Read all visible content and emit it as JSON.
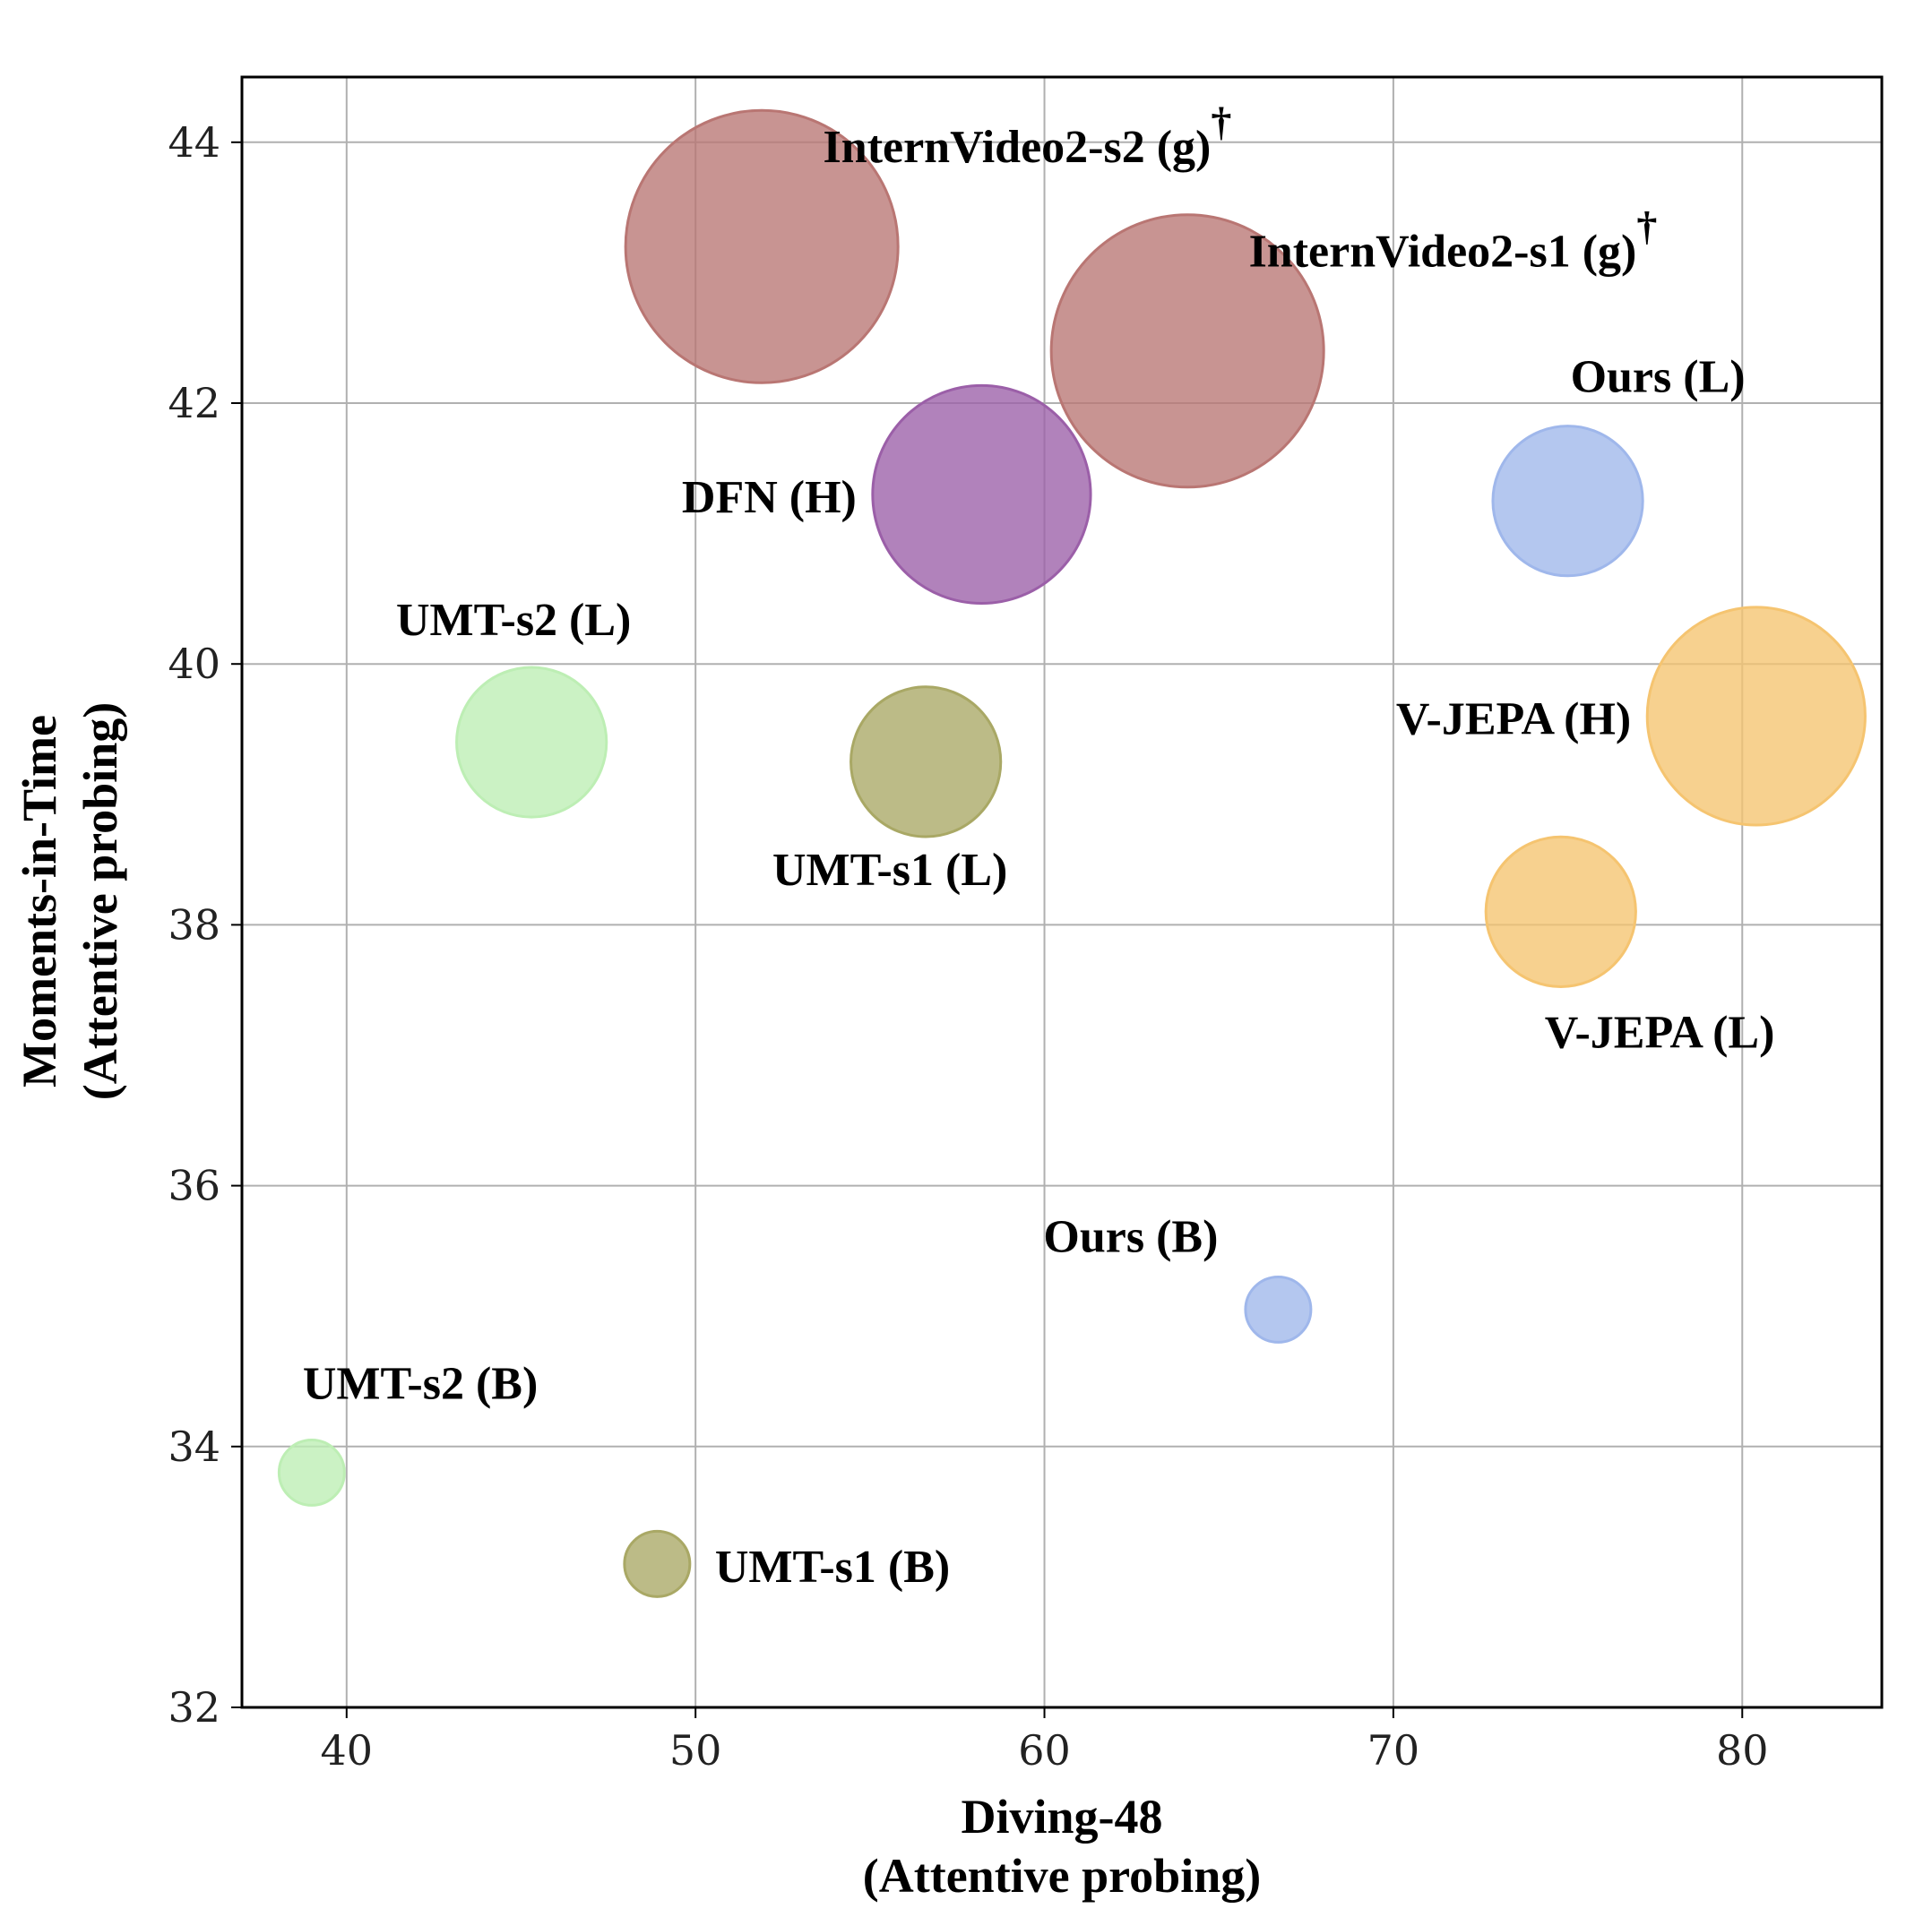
{
  "chart_data": {
    "type": "scatter",
    "title": "",
    "xlabel": [
      "Diving-48",
      "(Attentive probing)"
    ],
    "ylabel": [
      "Moments-in-Time",
      "(Attentive probing)"
    ],
    "xlim": [
      37,
      84
    ],
    "ylim": [
      32,
      44.5
    ],
    "xticks": [
      40,
      50,
      60,
      70,
      80
    ],
    "yticks": [
      32,
      34,
      36,
      38,
      40,
      42,
      44
    ],
    "grid": true,
    "points": [
      {
        "name": "InternVideo2-s2 (g)",
        "marker": "†",
        "x": 51.9,
        "y": 43.2,
        "size": 10.0,
        "color": "#b97673",
        "label_anchor": "right-upper"
      },
      {
        "name": "InternVideo2-s1 (g)",
        "marker": "†",
        "x": 64.1,
        "y": 42.4,
        "size": 10.0,
        "color": "#b97673",
        "label_anchor": "right-upper"
      },
      {
        "name": "DFN (H)",
        "marker": "",
        "x": 58.2,
        "y": 41.3,
        "size": 8.0,
        "color": "#9b5fa8",
        "label_anchor": "left"
      },
      {
        "name": "Ours (L)",
        "marker": "",
        "x": 75.0,
        "y": 41.25,
        "size": 5.5,
        "color": "#9fb7eb",
        "label_anchor": "above-right"
      },
      {
        "name": "V-JEPA (H)",
        "marker": "",
        "x": 80.4,
        "y": 39.6,
        "size": 8.0,
        "color": "#f5c470",
        "label_anchor": "left"
      },
      {
        "name": "UMT-s2 (L)",
        "marker": "",
        "x": 45.3,
        "y": 39.4,
        "size": 5.5,
        "color": "#bdeeb4",
        "label_anchor": "above"
      },
      {
        "name": "UMT-s1 (L)",
        "marker": "",
        "x": 56.6,
        "y": 39.25,
        "size": 5.5,
        "color": "#a9a865",
        "label_anchor": "below"
      },
      {
        "name": "V-JEPA (L)",
        "marker": "",
        "x": 74.8,
        "y": 38.1,
        "size": 5.5,
        "color": "#f5c470",
        "label_anchor": "below-right"
      },
      {
        "name": "Ours (B)",
        "marker": "",
        "x": 66.7,
        "y": 35.05,
        "size": 2.4,
        "color": "#9fb7eb",
        "label_anchor": "above-left"
      },
      {
        "name": "UMT-s2 (B)",
        "marker": "",
        "x": 39.0,
        "y": 33.8,
        "size": 2.4,
        "color": "#bdeeb4",
        "label_anchor": "above-right"
      },
      {
        "name": "UMT-s1 (B)",
        "marker": "",
        "x": 48.9,
        "y": 33.1,
        "size": 2.4,
        "color": "#a9a865",
        "label_anchor": "right"
      }
    ]
  }
}
